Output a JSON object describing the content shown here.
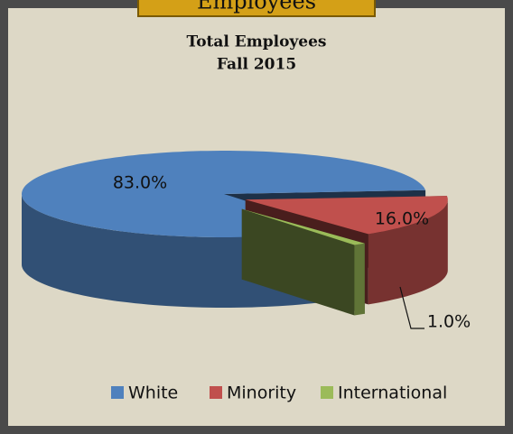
{
  "header": "Employees",
  "chart_data": {
    "type": "pie3d",
    "title": "Total Employees",
    "subtitle": "Fall 2015",
    "categories": [
      "White",
      "Minority",
      "International"
    ],
    "values": [
      83,
      16,
      1
    ],
    "value_labels": [
      "83.0%",
      "16.0%",
      "1.0%"
    ],
    "colors": [
      "#4f81bd",
      "#c0504d",
      "#9bbb59"
    ],
    "legend": "bottom"
  }
}
